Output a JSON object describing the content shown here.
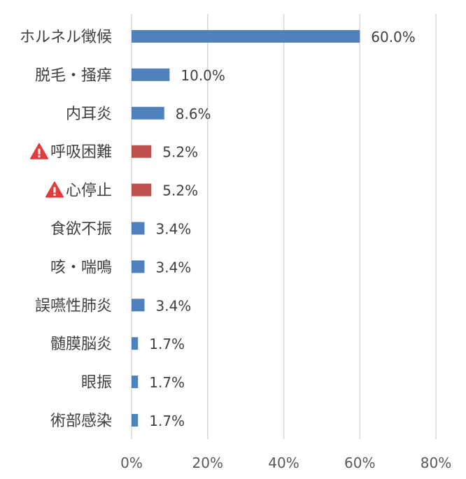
{
  "chart_data": {
    "type": "bar",
    "orientation": "horizontal",
    "categories": [
      "ホルネル徴候",
      "脱毛・掻痒",
      "内耳炎",
      "呼吸困難",
      "心停止",
      "食欲不振",
      "咳・喘鳴",
      "誤嚥性肺炎",
      "髄膜脳炎",
      "眼振",
      "術部感染"
    ],
    "values": [
      60.0,
      10.0,
      8.6,
      5.2,
      5.2,
      3.4,
      3.4,
      3.4,
      1.7,
      1.7,
      1.7
    ],
    "value_labels": [
      "60.0%",
      "10.0%",
      "8.6%",
      "5.2%",
      "5.2%",
      "3.4%",
      "3.4%",
      "3.4%",
      "1.7%",
      "1.7%",
      "1.7%"
    ],
    "warning": [
      false,
      false,
      false,
      true,
      true,
      false,
      false,
      false,
      false,
      false,
      false
    ],
    "xlim": [
      0,
      80
    ],
    "xticks": [
      "0%",
      "20%",
      "40%",
      "60%",
      "80%"
    ],
    "grid": true,
    "colors": {
      "normal": "#4f81bd",
      "warning": "#c0504d",
      "warning_icon": "#e03c3c"
    },
    "icon": "warning-triangle-icon"
  }
}
